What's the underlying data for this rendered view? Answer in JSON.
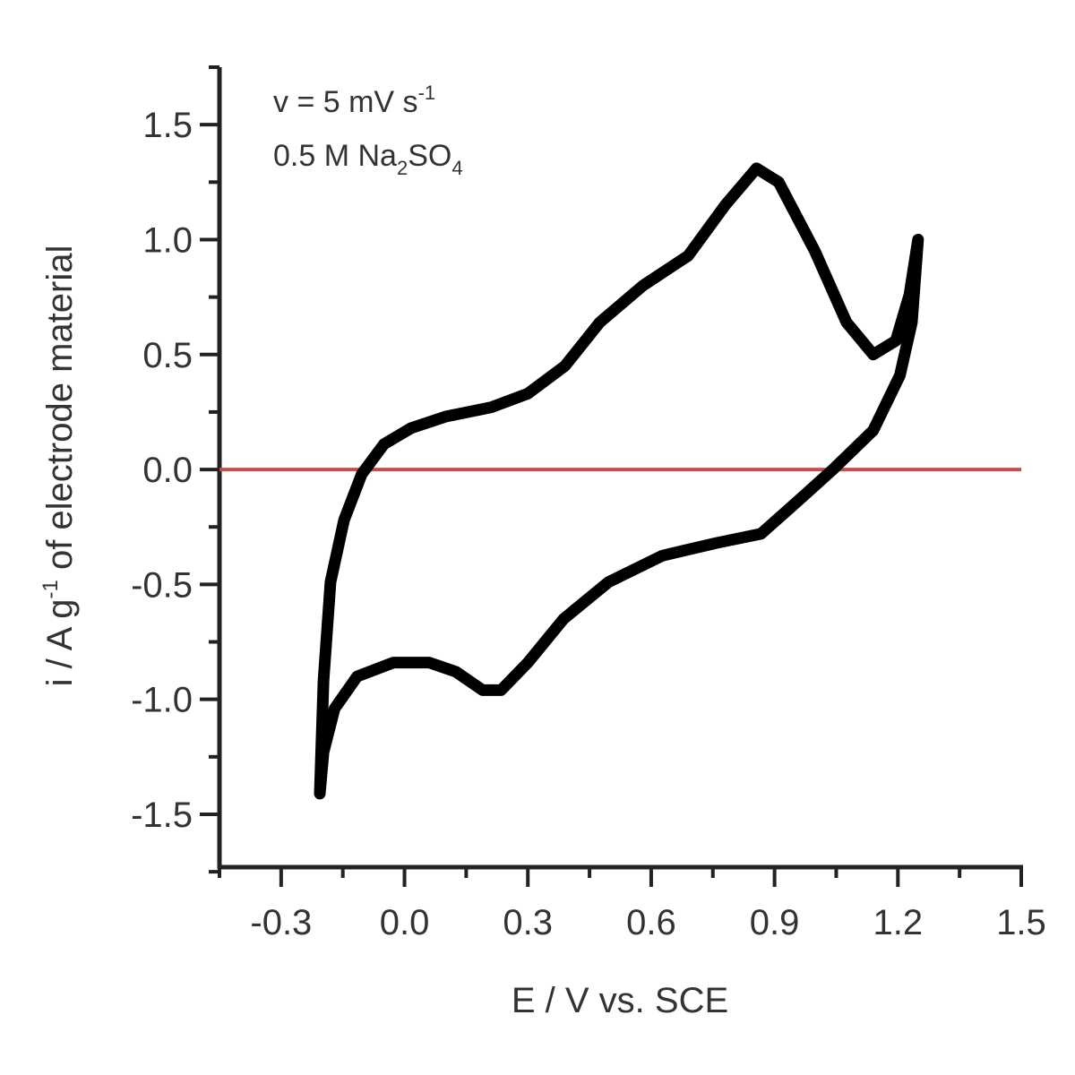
{
  "chart_data": {
    "type": "line",
    "annotations": [
      [
        "v = 5 mV s",
        "-1"
      ],
      [
        "0.5 M Na",
        "2",
        "SO",
        "4"
      ]
    ],
    "x_label": "E / V vs. SCE",
    "y_label": [
      "i / A g",
      "-1",
      " of electrode material"
    ],
    "series": [
      {
        "color": "#000000",
        "x": [
          -0.206,
          -0.197,
          -0.18,
          -0.147,
          -0.104,
          -0.05,
          0.016,
          0.1,
          0.21,
          0.3,
          0.39,
          0.475,
          0.58,
          0.69,
          0.78,
          0.856,
          0.91,
          0.998,
          1.075,
          1.14,
          1.195,
          1.228,
          1.249,
          1.234,
          1.205,
          1.14,
          1.042,
          0.955,
          0.867,
          0.758,
          0.627,
          0.496,
          0.387,
          0.3,
          0.235,
          0.19,
          0.125,
          0.06,
          -0.027,
          -0.115,
          -0.17,
          -0.197,
          -0.206
        ],
        "values": [
          -1.41,
          -0.92,
          -0.49,
          -0.22,
          -0.02,
          0.11,
          0.18,
          0.23,
          0.27,
          0.33,
          0.45,
          0.64,
          0.8,
          0.93,
          1.15,
          1.31,
          1.25,
          0.95,
          0.64,
          0.5,
          0.56,
          0.76,
          1.0,
          0.64,
          0.41,
          0.17,
          0.0,
          -0.14,
          -0.28,
          -0.32,
          -0.375,
          -0.49,
          -0.65,
          -0.84,
          -0.96,
          -0.96,
          -0.88,
          -0.84,
          -0.84,
          -0.9,
          -1.04,
          -1.23,
          -1.41
        ]
      }
    ],
    "hlines": [
      {
        "y": 0,
        "color": "#c0504d"
      }
    ],
    "xlim": [
      -0.45,
      1.5
    ],
    "ylim": [
      -1.73,
      1.75
    ],
    "xticks": [
      -0.3,
      {
        "value": 0,
        "label": "0.0"
      },
      0.3,
      0.6,
      0.9,
      1.2,
      1.5
    ],
    "yticks": [
      -1.5,
      {
        "value": -1,
        "label": "-1.0"
      },
      -0.5,
      {
        "value": 0,
        "label": "0.0"
      },
      0.5,
      {
        "value": 1,
        "label": "1.0"
      },
      1.5
    ],
    "xminor_ticks": [
      -0.45,
      -0.15,
      0.15,
      0.45,
      0.75,
      1.05,
      1.35
    ],
    "yminor_ticks": [
      -1.75,
      -1.25,
      -0.75,
      -0.25,
      0.25,
      0.75,
      1.25,
      1.75
    ],
    "grid": false
  }
}
